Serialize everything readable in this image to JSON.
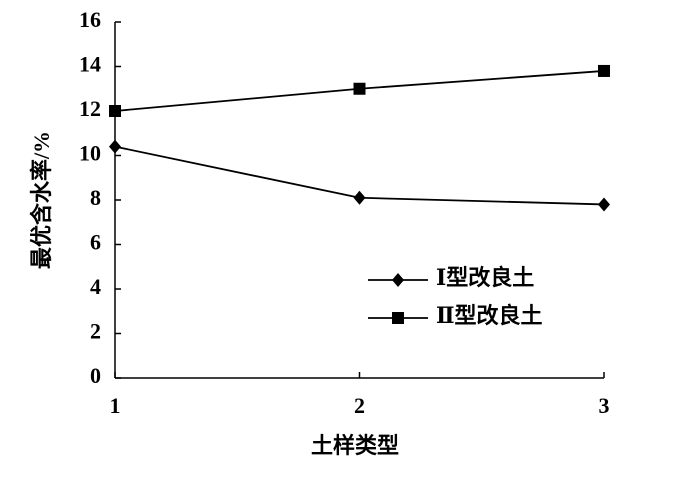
{
  "chart_data": {
    "type": "line",
    "x_label": "土样类型",
    "y_label": "最优含水率/%",
    "x": [
      1,
      2,
      3
    ],
    "xlim": [
      1,
      3
    ],
    "xticks": [
      1,
      2,
      3
    ],
    "ylim": [
      0,
      16
    ],
    "yticks": [
      0,
      2,
      4,
      6,
      8,
      10,
      12,
      14,
      16
    ],
    "legend_position": "lower right",
    "series": [
      {
        "name": "Ⅰ型改良土",
        "color": "#000000",
        "marker": "diamond",
        "values": [
          10.4,
          8.1,
          7.8
        ]
      },
      {
        "name": "Ⅱ型改良土",
        "color": "#000000",
        "marker": "square",
        "values": [
          12.0,
          13.0,
          13.8
        ]
      }
    ]
  }
}
